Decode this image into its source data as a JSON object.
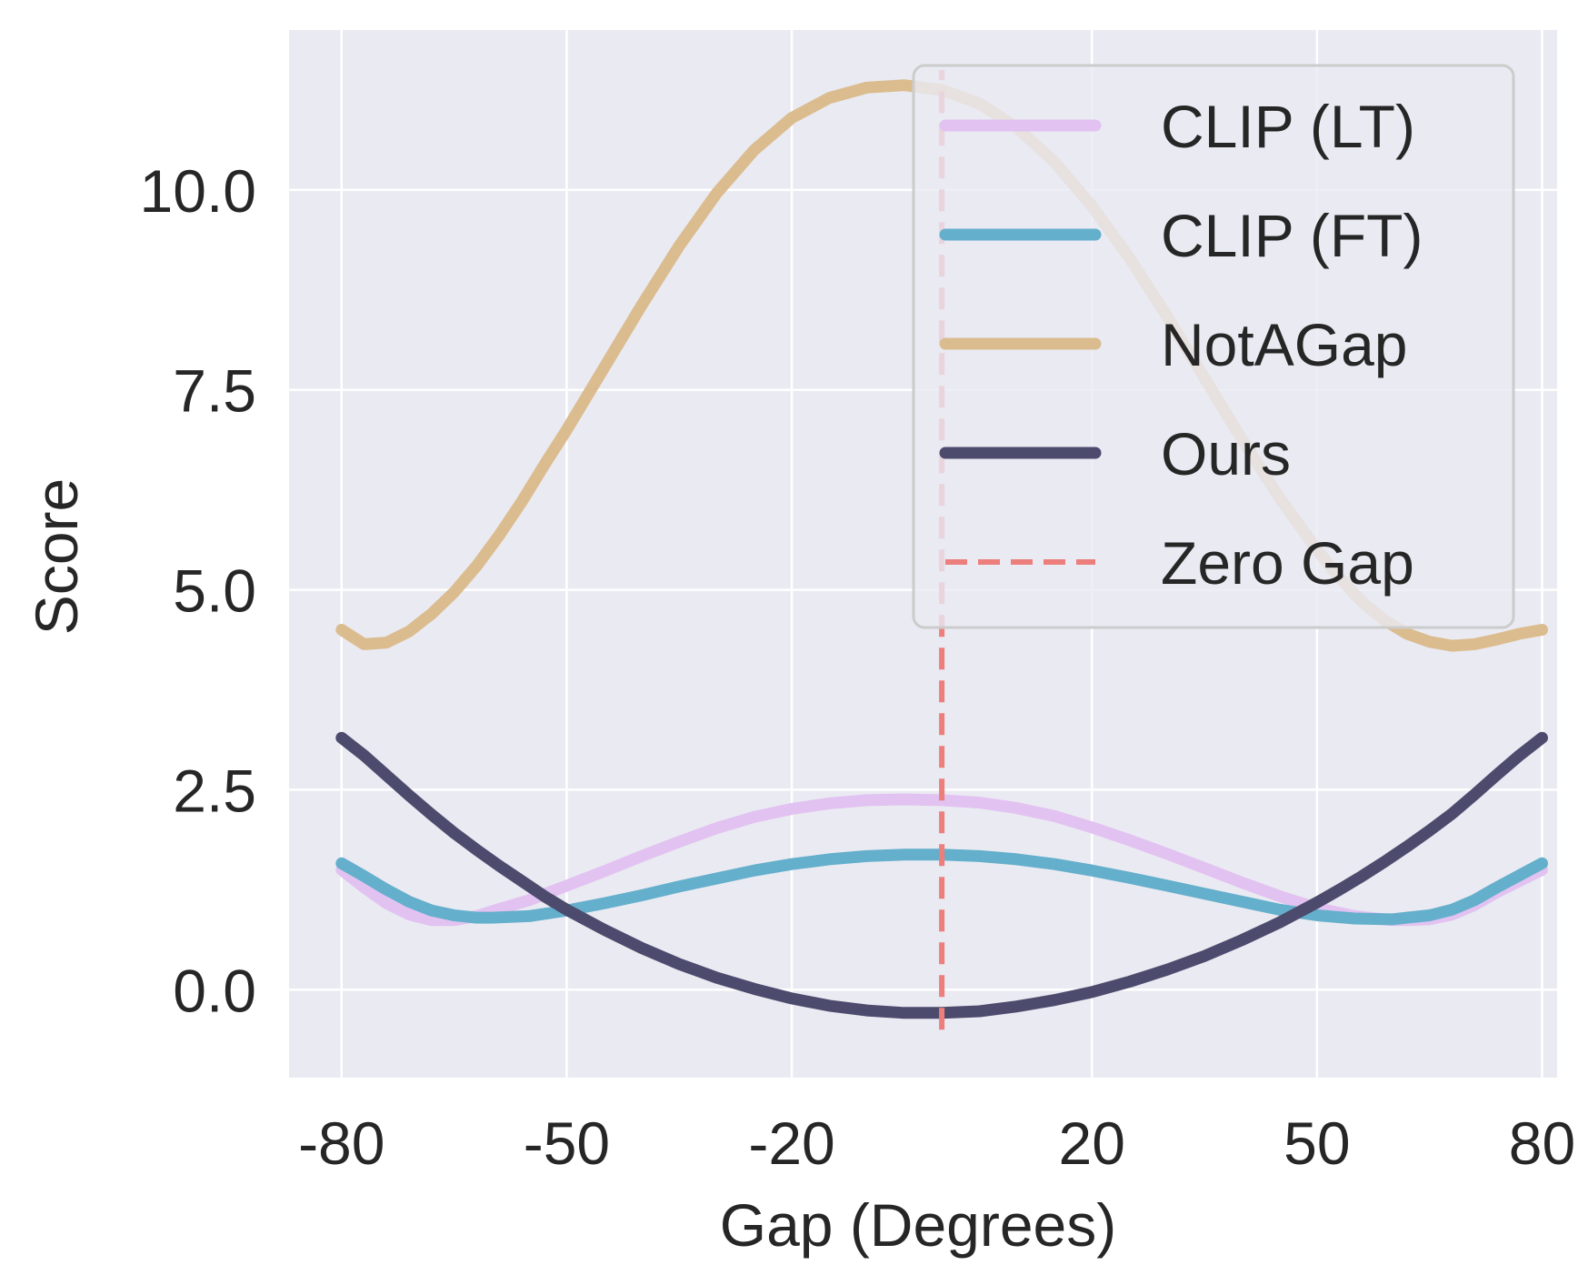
{
  "chart_data": {
    "type": "line",
    "title": "",
    "xlabel": "Gap (Degrees)",
    "ylabel": "Score",
    "xlim": [
      -87,
      82
    ],
    "ylim": [
      -1.1,
      12.0
    ],
    "xticks": [
      -80,
      -50,
      -20,
      20,
      50,
      80
    ],
    "xtick_labels": [
      "-80",
      "-50",
      "-20",
      "20",
      "50",
      "80"
    ],
    "yticks": [
      0.0,
      2.5,
      5.0,
      7.5,
      10.0
    ],
    "ytick_labels": [
      "0.0",
      "2.5",
      "5.0",
      "7.5",
      "10.0"
    ],
    "grid": true,
    "legend_position": "top-right",
    "series": [
      {
        "name": "CLIP (LT)",
        "color": "#e2c2f1",
        "x": [
          -80,
          -77,
          -74,
          -71,
          -68,
          -65,
          -62,
          -60,
          -55,
          -50,
          -45,
          -40,
          -35,
          -30,
          -25,
          -20,
          -15,
          -10,
          -5,
          0,
          5,
          10,
          15,
          20,
          25,
          30,
          35,
          40,
          45,
          50,
          55,
          60,
          62,
          65,
          68,
          71,
          74,
          77,
          80
        ],
        "y": [
          1.5,
          1.28,
          1.08,
          0.94,
          0.87,
          0.87,
          0.92,
          0.98,
          1.12,
          1.3,
          1.48,
          1.67,
          1.85,
          2.02,
          2.16,
          2.26,
          2.33,
          2.37,
          2.38,
          2.37,
          2.34,
          2.27,
          2.17,
          2.03,
          1.87,
          1.7,
          1.52,
          1.34,
          1.17,
          1.02,
          0.92,
          0.87,
          0.87,
          0.88,
          0.94,
          1.06,
          1.22,
          1.36,
          1.5
        ]
      },
      {
        "name": "CLIP (FT)",
        "color": "#64afcc",
        "x": [
          -80,
          -77,
          -74,
          -71,
          -68,
          -65,
          -62,
          -60,
          -55,
          -50,
          -45,
          -40,
          -35,
          -30,
          -25,
          -20,
          -15,
          -10,
          -5,
          0,
          5,
          10,
          15,
          20,
          25,
          30,
          35,
          40,
          45,
          50,
          55,
          60,
          62,
          65,
          68,
          71,
          74,
          77,
          80
        ],
        "y": [
          1.58,
          1.42,
          1.25,
          1.1,
          0.99,
          0.93,
          0.9,
          0.9,
          0.92,
          0.99,
          1.08,
          1.18,
          1.29,
          1.39,
          1.49,
          1.57,
          1.63,
          1.67,
          1.69,
          1.69,
          1.67,
          1.63,
          1.57,
          1.49,
          1.4,
          1.3,
          1.2,
          1.1,
          1.0,
          0.93,
          0.89,
          0.88,
          0.9,
          0.93,
          1.0,
          1.12,
          1.28,
          1.43,
          1.58
        ]
      },
      {
        "name": "NotAGap",
        "color": "#dbbc8f",
        "x": [
          -80,
          -77,
          -74,
          -71,
          -68,
          -65,
          -62,
          -59,
          -56,
          -53,
          -50,
          -45,
          -40,
          -35,
          -30,
          -25,
          -20,
          -15,
          -10,
          -5,
          0,
          5,
          10,
          15,
          20,
          25,
          30,
          35,
          40,
          45,
          50,
          53,
          56,
          59,
          62,
          65,
          68,
          71,
          74,
          77,
          80
        ],
        "y": [
          4.5,
          4.32,
          4.34,
          4.48,
          4.7,
          4.97,
          5.3,
          5.68,
          6.1,
          6.56,
          7.0,
          7.78,
          8.56,
          9.3,
          9.96,
          10.5,
          10.9,
          11.15,
          11.28,
          11.31,
          11.25,
          11.08,
          10.78,
          10.35,
          9.8,
          9.15,
          8.42,
          7.65,
          6.88,
          6.15,
          5.5,
          5.15,
          4.85,
          4.62,
          4.45,
          4.35,
          4.3,
          4.32,
          4.38,
          4.45,
          4.5
        ]
      },
      {
        "name": "Ours",
        "color": "#4c4b6e",
        "x": [
          -80,
          -77,
          -74,
          -71,
          -68,
          -65,
          -62,
          -59,
          -56,
          -53,
          -50,
          -45,
          -40,
          -35,
          -30,
          -25,
          -20,
          -15,
          -10,
          -5,
          0,
          5,
          10,
          15,
          20,
          25,
          30,
          35,
          40,
          45,
          50,
          53,
          56,
          59,
          62,
          65,
          68,
          71,
          74,
          77,
          80
        ],
        "y": [
          3.15,
          2.93,
          2.68,
          2.43,
          2.19,
          1.96,
          1.75,
          1.55,
          1.36,
          1.17,
          1.0,
          0.75,
          0.52,
          0.32,
          0.15,
          0.01,
          -0.11,
          -0.2,
          -0.26,
          -0.29,
          -0.29,
          -0.27,
          -0.21,
          -0.13,
          -0.03,
          0.1,
          0.25,
          0.42,
          0.62,
          0.84,
          1.09,
          1.25,
          1.42,
          1.6,
          1.79,
          1.99,
          2.2,
          2.44,
          2.69,
          2.93,
          3.15
        ]
      },
      {
        "name": "Zero Gap",
        "color": "#ec7f7c",
        "dashed": true,
        "x": [
          0,
          0
        ],
        "y": [
          -0.5,
          11.5
        ]
      }
    ]
  }
}
